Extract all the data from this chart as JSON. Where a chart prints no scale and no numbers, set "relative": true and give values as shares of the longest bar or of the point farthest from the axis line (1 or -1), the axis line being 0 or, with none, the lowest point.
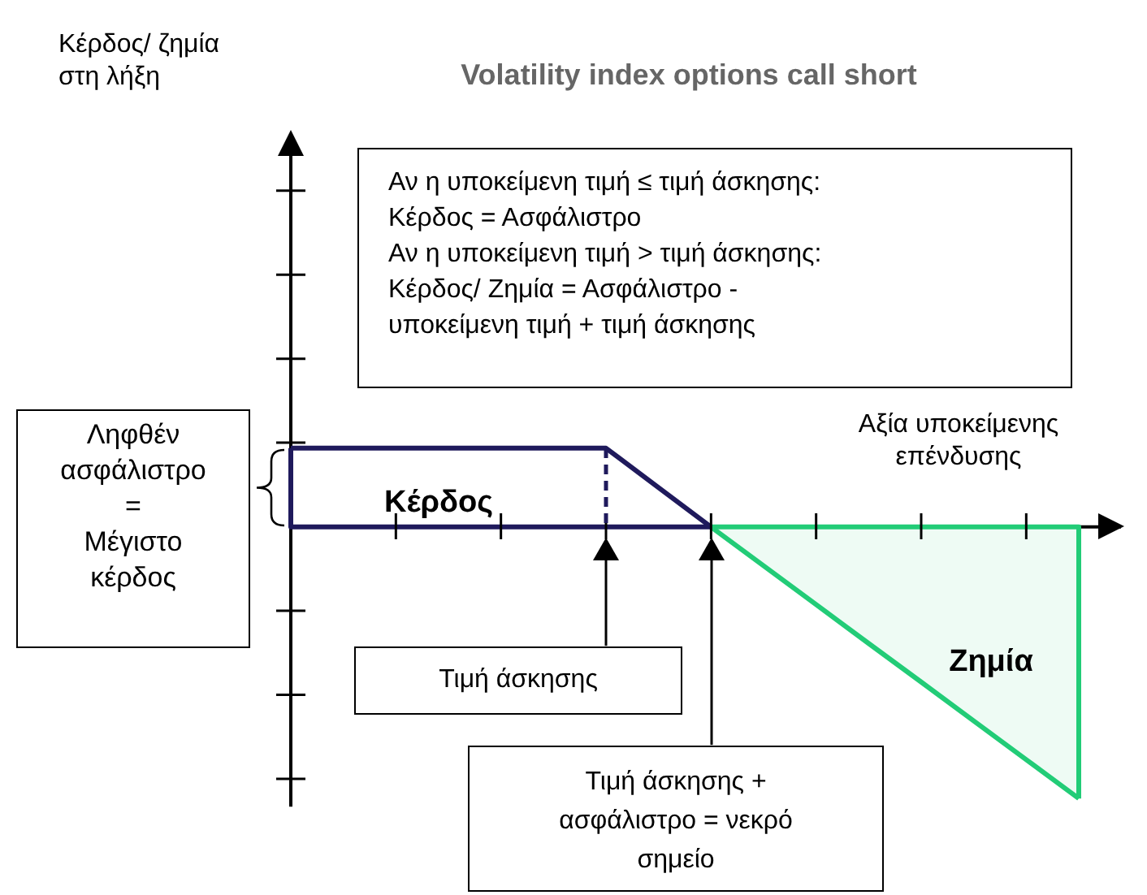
{
  "chart_data": {
    "type": "line",
    "title": "Volatility index options call short",
    "xlabel": "Αξία υποκείμενης\nεπένδυσης",
    "relative": true,
    "marker": "none",
    "legend": false,
    "categories": [
      null,
      null,
      null,
      null,
      null,
      null,
      null,
      null,
      null,
      null,
      null,
      null,
      null,
      null,
      null,
      null
    ],
    "series": [
      {
        "color": "#1f1a5c",
        "values": [
          0.29,
          0.29,
          0.29,
          0.29,
          0.29,
          0.29,
          0.29,
          0.145,
          0,
          null,
          null,
          null,
          null,
          null,
          null,
          null
        ]
      },
      {
        "type": "area",
        "color": "#22cc77",
        "values": [
          null,
          null,
          null,
          null,
          null,
          null,
          null,
          null,
          0,
          -0.143,
          -0.286,
          -0.429,
          -0.571,
          -0.714,
          -0.857,
          -1
        ]
      }
    ],
    "annotations": [
      "Κέρδος/ ζημία\nστη λήξη",
      "Αν η υποκείμενη τιμή ≤ τιμή άσκησης:\nΚέρδος = Ασφάλιστρο\nΑν η υποκείμενη τιμή > τιμή άσκησης:\nΚέρδος/ Ζημία = Ασφάλιστρο -\nυποκείμενη τιμή + τιμή άσκησης",
      "Ληφθέν\nασφάλιστρο\n=\nΜέγιστο\nκέρδος",
      "Κέρδος",
      "Ζημία",
      "Τιμή άσκησης",
      "Τιμή άσκησης +\nασφάλιστρο = νεκρό\nσημείο"
    ]
  }
}
